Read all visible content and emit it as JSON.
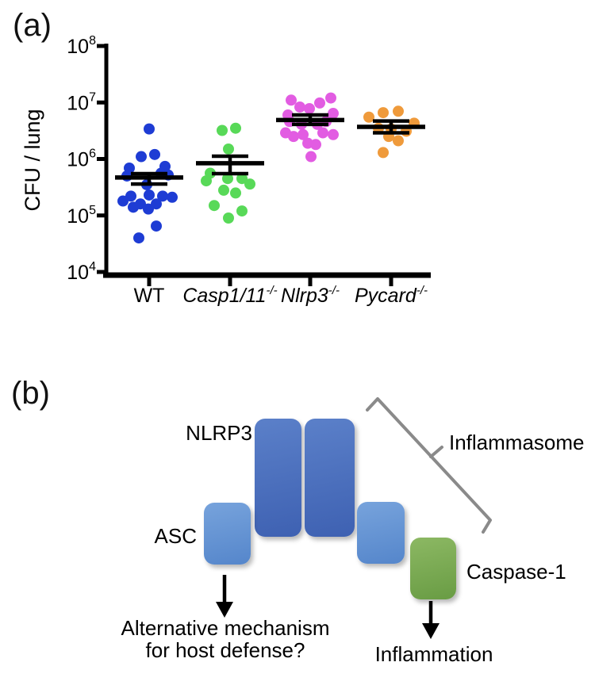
{
  "panels": {
    "a": {
      "label": "(a)"
    },
    "b": {
      "label": "(b)",
      "nlrp3_label": "NLRP3",
      "asc_label": "ASC",
      "caspase_label": "Caspase-1",
      "inflammasome_label": "Inflammasome",
      "alt_mechanism_lines": [
        "Alternative mechanism",
        "for host defense?"
      ],
      "inflammation_label": "Inflammation",
      "colors": {
        "nlrp3_box": "#4a6cba",
        "asc_box": "#6597d4",
        "caspase_box": "#7aa853",
        "bracket": "#8a8a8a",
        "arrow": "#000000"
      }
    }
  },
  "chart_data": {
    "type": "scatter",
    "title": "",
    "xlabel": "",
    "ylabel": "CFU / lung",
    "yscale": "log",
    "ylim": [
      10000,
      100000000
    ],
    "y_ticks": [
      "10^8",
      "10^7",
      "10^6",
      "10^5",
      "10^4"
    ],
    "grid": false,
    "legend": "none",
    "groups": [
      {
        "label": "WT",
        "label_sup": "",
        "italic": false,
        "color": "#1e3cd4",
        "mean": 470000,
        "sem_upper": 550000,
        "sem_lower": 360000,
        "points": [
          [
            0,
            3400000
          ],
          [
            -10,
            1100000
          ],
          [
            7,
            1200000
          ],
          [
            -25,
            690000
          ],
          [
            20,
            740000
          ],
          [
            -28,
            500000
          ],
          [
            15,
            560000
          ],
          [
            24,
            520000
          ],
          [
            -3,
            350000
          ],
          [
            -23,
            220000
          ],
          [
            0,
            230000
          ],
          [
            17,
            220000
          ],
          [
            29,
            210000
          ],
          [
            -33,
            180000
          ],
          [
            -11,
            160000
          ],
          [
            9,
            160000
          ],
          [
            -20,
            140000
          ],
          [
            -1,
            130000
          ],
          [
            9,
            65000
          ],
          [
            -13,
            40000
          ]
        ]
      },
      {
        "label": "Casp1/11",
        "label_sup": "-/-",
        "italic": true,
        "color": "#58d958",
        "mean": 840000,
        "sem_upper": 1120000,
        "sem_lower": 550000,
        "points": [
          [
            -10,
            3200000
          ],
          [
            7,
            3500000
          ],
          [
            -2,
            1500000
          ],
          [
            -25,
            560000
          ],
          [
            -30,
            410000
          ],
          [
            -3,
            450000
          ],
          [
            15,
            450000
          ],
          [
            25,
            360000
          ],
          [
            -8,
            280000
          ],
          [
            7,
            250000
          ],
          [
            -20,
            150000
          ],
          [
            15,
            120000
          ],
          [
            -2,
            90000
          ]
        ]
      },
      {
        "label": "Nlrp3",
        "label_sup": "-/-",
        "italic": true,
        "color": "#e25ce2",
        "mean": 4900000,
        "sem_upper": 6000000,
        "sem_lower": 4100000,
        "points": [
          [
            -24,
            11000000
          ],
          [
            -13,
            8300000
          ],
          [
            -1,
            7800000
          ],
          [
            12,
            9800000
          ],
          [
            26,
            12000000
          ],
          [
            -28,
            6000000
          ],
          [
            29,
            6400000
          ],
          [
            -26,
            4600000
          ],
          [
            20,
            4600000
          ],
          [
            -11,
            4100000
          ],
          [
            9,
            4100000
          ],
          [
            -31,
            2900000
          ],
          [
            -21,
            2500000
          ],
          [
            -9,
            2700000
          ],
          [
            16,
            2900000
          ],
          [
            29,
            2700000
          ],
          [
            -3,
            1900000
          ],
          [
            7,
            1800000
          ],
          [
            1,
            1100000
          ]
        ]
      },
      {
        "label": "Pycard",
        "label_sup": "-/-",
        "italic": true,
        "color": "#ef9a3b",
        "mean": 3700000,
        "sem_upper": 4700000,
        "sem_lower": 2900000,
        "points": [
          [
            -10,
            6600000
          ],
          [
            9,
            7000000
          ],
          [
            -28,
            5500000
          ],
          [
            29,
            4300000
          ],
          [
            -16,
            3500000
          ],
          [
            0,
            3400000
          ],
          [
            19,
            3100000
          ],
          [
            -3,
            2500000
          ],
          [
            9,
            2100000
          ],
          [
            -10,
            1300000
          ]
        ]
      }
    ]
  }
}
